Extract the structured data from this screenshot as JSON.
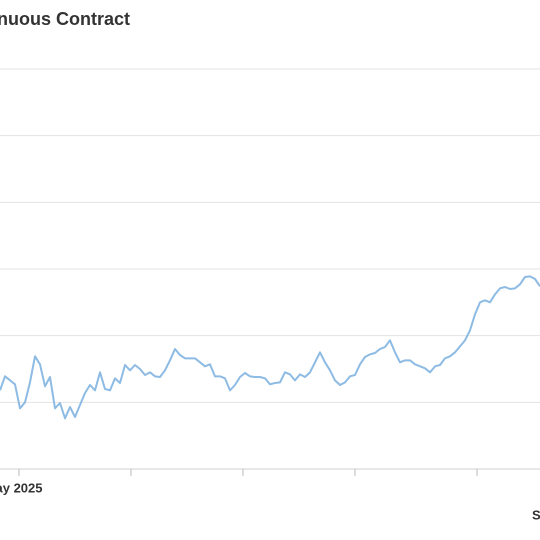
{
  "chart_data": {
    "type": "line",
    "title": "nuous Contract",
    "values": [
      1.18,
      1.39,
      1.33,
      1.27,
      0.91,
      1.0,
      1.3,
      1.69,
      1.57,
      1.24,
      1.38,
      0.91,
      0.99,
      0.76,
      0.93,
      0.78,
      0.96,
      1.14,
      1.26,
      1.18,
      1.45,
      1.2,
      1.18,
      1.36,
      1.29,
      1.56,
      1.48,
      1.56,
      1.5,
      1.41,
      1.45,
      1.39,
      1.38,
      1.48,
      1.63,
      1.8,
      1.71,
      1.66,
      1.66,
      1.66,
      1.6,
      1.54,
      1.57,
      1.39,
      1.39,
      1.36,
      1.18,
      1.26,
      1.38,
      1.44,
      1.39,
      1.38,
      1.38,
      1.36,
      1.27,
      1.29,
      1.3,
      1.45,
      1.42,
      1.33,
      1.42,
      1.38,
      1.45,
      1.6,
      1.75,
      1.6,
      1.48,
      1.33,
      1.26,
      1.3,
      1.39,
      1.41,
      1.57,
      1.68,
      1.72,
      1.74,
      1.8,
      1.83,
      1.93,
      1.75,
      1.6,
      1.63,
      1.63,
      1.57,
      1.54,
      1.51,
      1.45,
      1.54,
      1.56,
      1.66,
      1.69,
      1.75,
      1.84,
      1.93,
      2.08,
      2.32,
      2.5,
      2.53,
      2.5,
      2.62,
      2.71,
      2.73,
      2.7,
      2.71,
      2.77,
      2.88,
      2.89,
      2.85,
      2.74
    ],
    "color": "#8dbbe4",
    "xlim": [
      0,
      108
    ],
    "xticks": [
      3.8,
      26.2,
      48.6,
      71,
      95.4
    ],
    "xtick_labels": [
      "ay 2025",
      null,
      null,
      null,
      null
    ],
    "corner_text": "S",
    "ylim": [
      0,
      6
    ],
    "yticks": [
      1,
      2,
      3,
      4,
      5,
      6
    ],
    "grid": true
  }
}
